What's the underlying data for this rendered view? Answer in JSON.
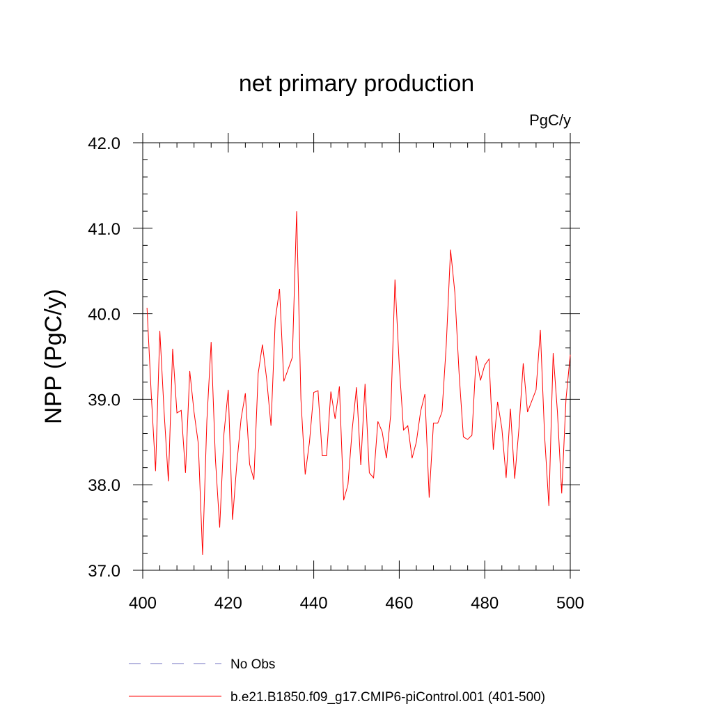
{
  "chart_data": {
    "type": "line",
    "title": "net primary production",
    "units_label": "PgC/y",
    "xlabel": "",
    "ylabel": "NPP  (PgC/y)",
    "xlim": [
      400,
      500
    ],
    "ylim": [
      37.0,
      42.0
    ],
    "x_ticks": [
      400,
      420,
      440,
      460,
      480,
      500
    ],
    "y_ticks": [
      37.0,
      38.0,
      39.0,
      40.0,
      41.0,
      42.0
    ],
    "x_tick_labels": [
      "400",
      "420",
      "440",
      "460",
      "480",
      "500"
    ],
    "y_tick_labels": [
      "37.0",
      "38.0",
      "39.0",
      "40.0",
      "41.0",
      "42.0"
    ],
    "grid": false,
    "legend_position": "bottom-center",
    "series": [
      {
        "name": "b.e21.B1850.f09_g17.CMIP6-piControl.001 (401-500)",
        "color": "#ff0000",
        "style": "solid",
        "x": [
          401,
          402,
          403,
          404,
          405,
          406,
          407,
          408,
          409,
          410,
          411,
          412,
          413,
          414,
          415,
          416,
          417,
          418,
          419,
          420,
          421,
          422,
          423,
          424,
          425,
          426,
          427,
          428,
          429,
          430,
          431,
          432,
          433,
          434,
          435,
          436,
          437,
          438,
          439,
          440,
          441,
          442,
          443,
          444,
          445,
          446,
          447,
          448,
          449,
          450,
          451,
          452,
          453,
          454,
          455,
          456,
          457,
          458,
          459,
          460,
          461,
          462,
          463,
          464,
          465,
          466,
          467,
          468,
          469,
          470,
          471,
          472,
          473,
          474,
          475,
          476,
          477,
          478,
          479,
          480,
          481,
          482,
          483,
          484,
          485,
          486,
          487,
          488,
          489,
          490,
          491,
          492,
          493,
          494,
          495,
          496,
          497,
          498,
          499,
          500
        ],
        "values": [
          40.07,
          39.05,
          38.16,
          39.8,
          38.85,
          38.04,
          39.59,
          38.84,
          38.87,
          38.14,
          39.33,
          38.85,
          38.48,
          37.18,
          38.75,
          39.67,
          38.3,
          37.5,
          38.6,
          39.11,
          37.59,
          38.24,
          38.77,
          39.07,
          38.24,
          38.06,
          39.3,
          39.64,
          39.23,
          38.69,
          39.93,
          40.29,
          39.21,
          39.35,
          39.49,
          41.2,
          39.0,
          38.12,
          38.5,
          39.08,
          39.1,
          38.34,
          38.34,
          39.09,
          38.77,
          39.15,
          37.82,
          38.0,
          38.65,
          39.14,
          38.23,
          39.18,
          38.14,
          38.08,
          38.74,
          38.62,
          38.31,
          38.82,
          40.4,
          39.4,
          38.64,
          38.69,
          38.31,
          38.5,
          38.86,
          39.06,
          37.85,
          38.72,
          38.72,
          38.85,
          39.64,
          40.75,
          40.25,
          39.3,
          38.56,
          38.53,
          38.58,
          39.51,
          39.22,
          39.4,
          39.47,
          38.41,
          38.97,
          38.66,
          38.08,
          38.89,
          38.07,
          38.66,
          39.42,
          38.85,
          38.98,
          39.11,
          39.81,
          38.57,
          37.75,
          39.54,
          38.85,
          37.9,
          39.0,
          39.52
        ]
      }
    ],
    "legend": [
      {
        "label": "No Obs",
        "color": "#7070c0",
        "style": "dashed"
      },
      {
        "label": "b.e21.B1850.f09_g17.CMIP6-piControl.001 (401-500)",
        "color": "#ff0000",
        "style": "solid"
      }
    ]
  }
}
